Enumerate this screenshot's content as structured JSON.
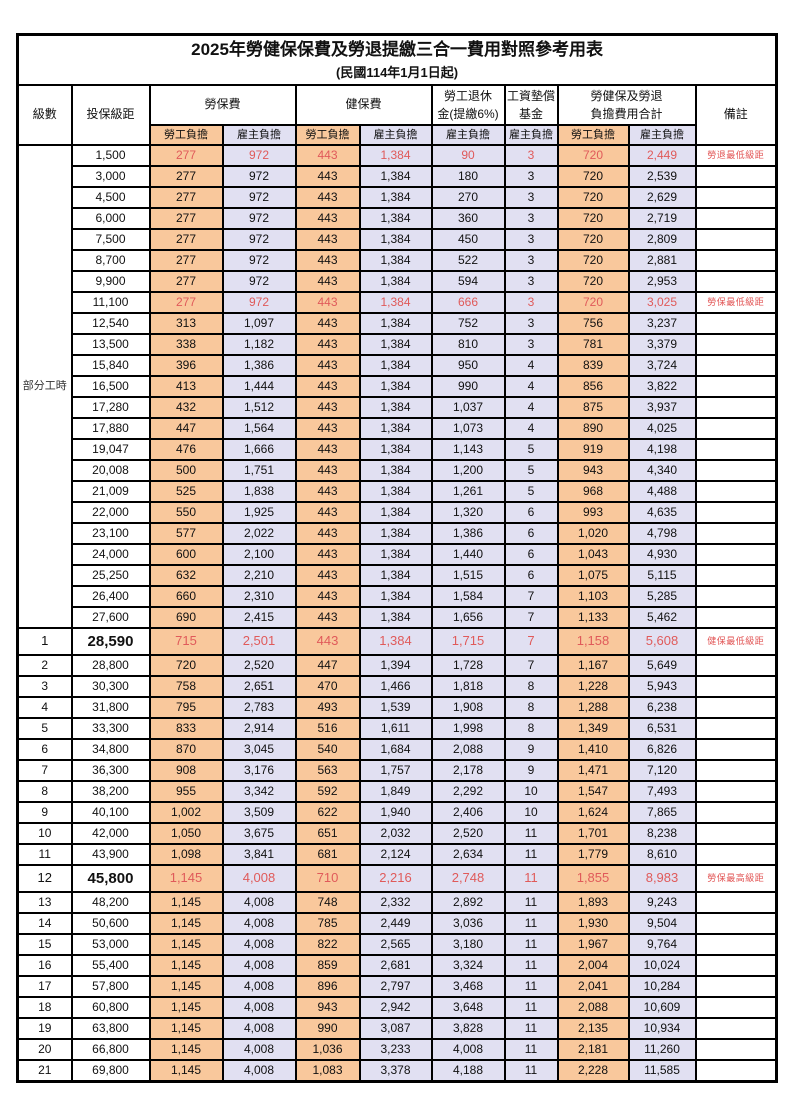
{
  "title": "2025年勞健保保費及勞退提繳三合一費用對照參考用表",
  "subtitle": "(民國114年1月1日起)",
  "colors": {
    "employee_share_bg": "#F9C89C",
    "employer_share_bg": "#E1E0F2",
    "highlight_text": "#E05A5A",
    "note_text": "#E25555",
    "border": "#000000"
  },
  "table": {
    "headers": {
      "level": "級數",
      "bracket": "投保級距",
      "labor_insurance": "勞保費",
      "health_insurance": "健保費",
      "pension_line1": "勞工退休",
      "pension_line2": "金(提繳6%)",
      "wage_fund_line1": "工資墊償",
      "wage_fund_line2": "基金",
      "total_line1": "勞健保及勞退",
      "total_line2": "負擔費用合計",
      "remark": "備註",
      "employee_share": "勞工負擔",
      "employer_share": "雇主負擔"
    },
    "part_time_label": "部分工時",
    "rows": [
      {
        "level": "",
        "bracket": "1,500",
        "v": [
          "277",
          "972",
          "443",
          "1,384",
          "90",
          "3",
          "720",
          "2,449"
        ],
        "note": "勞退最低級距",
        "red": true
      },
      {
        "level": "",
        "bracket": "3,000",
        "v": [
          "277",
          "972",
          "443",
          "1,384",
          "180",
          "3",
          "720",
          "2,539"
        ],
        "note": ""
      },
      {
        "level": "",
        "bracket": "4,500",
        "v": [
          "277",
          "972",
          "443",
          "1,384",
          "270",
          "3",
          "720",
          "2,629"
        ],
        "note": ""
      },
      {
        "level": "",
        "bracket": "6,000",
        "v": [
          "277",
          "972",
          "443",
          "1,384",
          "360",
          "3",
          "720",
          "2,719"
        ],
        "note": ""
      },
      {
        "level": "",
        "bracket": "7,500",
        "v": [
          "277",
          "972",
          "443",
          "1,384",
          "450",
          "3",
          "720",
          "2,809"
        ],
        "note": ""
      },
      {
        "level": "",
        "bracket": "8,700",
        "v": [
          "277",
          "972",
          "443",
          "1,384",
          "522",
          "3",
          "720",
          "2,881"
        ],
        "note": ""
      },
      {
        "level": "",
        "bracket": "9,900",
        "v": [
          "277",
          "972",
          "443",
          "1,384",
          "594",
          "3",
          "720",
          "2,953"
        ],
        "note": ""
      },
      {
        "level": "",
        "bracket": "11,100",
        "v": [
          "277",
          "972",
          "443",
          "1,384",
          "666",
          "3",
          "720",
          "3,025"
        ],
        "note": "勞保最低級距",
        "red": true
      },
      {
        "level": "",
        "bracket": "12,540",
        "v": [
          "313",
          "1,097",
          "443",
          "1,384",
          "752",
          "3",
          "756",
          "3,237"
        ],
        "note": ""
      },
      {
        "level": "",
        "bracket": "13,500",
        "v": [
          "338",
          "1,182",
          "443",
          "1,384",
          "810",
          "3",
          "781",
          "3,379"
        ],
        "note": ""
      },
      {
        "level": "",
        "bracket": "15,840",
        "v": [
          "396",
          "1,386",
          "443",
          "1,384",
          "950",
          "4",
          "839",
          "3,724"
        ],
        "note": ""
      },
      {
        "level": "",
        "bracket": "16,500",
        "v": [
          "413",
          "1,444",
          "443",
          "1,384",
          "990",
          "4",
          "856",
          "3,822"
        ],
        "note": ""
      },
      {
        "level": "",
        "bracket": "17,280",
        "v": [
          "432",
          "1,512",
          "443",
          "1,384",
          "1,037",
          "4",
          "875",
          "3,937"
        ],
        "note": ""
      },
      {
        "level": "",
        "bracket": "17,880",
        "v": [
          "447",
          "1,564",
          "443",
          "1,384",
          "1,073",
          "4",
          "890",
          "4,025"
        ],
        "note": ""
      },
      {
        "level": "",
        "bracket": "19,047",
        "v": [
          "476",
          "1,666",
          "443",
          "1,384",
          "1,143",
          "5",
          "919",
          "4,198"
        ],
        "note": ""
      },
      {
        "level": "",
        "bracket": "20,008",
        "v": [
          "500",
          "1,751",
          "443",
          "1,384",
          "1,200",
          "5",
          "943",
          "4,340"
        ],
        "note": ""
      },
      {
        "level": "",
        "bracket": "21,009",
        "v": [
          "525",
          "1,838",
          "443",
          "1,384",
          "1,261",
          "5",
          "968",
          "4,488"
        ],
        "note": ""
      },
      {
        "level": "",
        "bracket": "22,000",
        "v": [
          "550",
          "1,925",
          "443",
          "1,384",
          "1,320",
          "6",
          "993",
          "4,635"
        ],
        "note": ""
      },
      {
        "level": "",
        "bracket": "23,100",
        "v": [
          "577",
          "2,022",
          "443",
          "1,384",
          "1,386",
          "6",
          "1,020",
          "4,798"
        ],
        "note": ""
      },
      {
        "level": "",
        "bracket": "24,000",
        "v": [
          "600",
          "2,100",
          "443",
          "1,384",
          "1,440",
          "6",
          "1,043",
          "4,930"
        ],
        "note": ""
      },
      {
        "level": "",
        "bracket": "25,250",
        "v": [
          "632",
          "2,210",
          "443",
          "1,384",
          "1,515",
          "6",
          "1,075",
          "5,115"
        ],
        "note": ""
      },
      {
        "level": "",
        "bracket": "26,400",
        "v": [
          "660",
          "2,310",
          "443",
          "1,384",
          "1,584",
          "7",
          "1,103",
          "5,285"
        ],
        "note": ""
      },
      {
        "level": "",
        "bracket": "27,600",
        "v": [
          "690",
          "2,415",
          "443",
          "1,384",
          "1,656",
          "7",
          "1,133",
          "5,462"
        ],
        "note": ""
      },
      {
        "level": "1",
        "bracket": "28,590",
        "v": [
          "715",
          "2,501",
          "443",
          "1,384",
          "1,715",
          "7",
          "1,158",
          "5,608"
        ],
        "note": "健保最低級距",
        "red": true,
        "big": true
      },
      {
        "level": "2",
        "bracket": "28,800",
        "v": [
          "720",
          "2,520",
          "447",
          "1,394",
          "1,728",
          "7",
          "1,167",
          "5,649"
        ],
        "note": ""
      },
      {
        "level": "3",
        "bracket": "30,300",
        "v": [
          "758",
          "2,651",
          "470",
          "1,466",
          "1,818",
          "8",
          "1,228",
          "5,943"
        ],
        "note": ""
      },
      {
        "level": "4",
        "bracket": "31,800",
        "v": [
          "795",
          "2,783",
          "493",
          "1,539",
          "1,908",
          "8",
          "1,288",
          "6,238"
        ],
        "note": ""
      },
      {
        "level": "5",
        "bracket": "33,300",
        "v": [
          "833",
          "2,914",
          "516",
          "1,611",
          "1,998",
          "8",
          "1,349",
          "6,531"
        ],
        "note": ""
      },
      {
        "level": "6",
        "bracket": "34,800",
        "v": [
          "870",
          "3,045",
          "540",
          "1,684",
          "2,088",
          "9",
          "1,410",
          "6,826"
        ],
        "note": ""
      },
      {
        "level": "7",
        "bracket": "36,300",
        "v": [
          "908",
          "3,176",
          "563",
          "1,757",
          "2,178",
          "9",
          "1,471",
          "7,120"
        ],
        "note": ""
      },
      {
        "level": "8",
        "bracket": "38,200",
        "v": [
          "955",
          "3,342",
          "592",
          "1,849",
          "2,292",
          "10",
          "1,547",
          "7,493"
        ],
        "note": ""
      },
      {
        "level": "9",
        "bracket": "40,100",
        "v": [
          "1,002",
          "3,509",
          "622",
          "1,940",
          "2,406",
          "10",
          "1,624",
          "7,865"
        ],
        "note": ""
      },
      {
        "level": "10",
        "bracket": "42,000",
        "v": [
          "1,050",
          "3,675",
          "651",
          "2,032",
          "2,520",
          "11",
          "1,701",
          "8,238"
        ],
        "note": ""
      },
      {
        "level": "11",
        "bracket": "43,900",
        "v": [
          "1,098",
          "3,841",
          "681",
          "2,124",
          "2,634",
          "11",
          "1,779",
          "8,610"
        ],
        "note": ""
      },
      {
        "level": "12",
        "bracket": "45,800",
        "v": [
          "1,145",
          "4,008",
          "710",
          "2,216",
          "2,748",
          "11",
          "1,855",
          "8,983"
        ],
        "note": "勞保最高級距",
        "red": true,
        "big": true
      },
      {
        "level": "13",
        "bracket": "48,200",
        "v": [
          "1,145",
          "4,008",
          "748",
          "2,332",
          "2,892",
          "11",
          "1,893",
          "9,243"
        ],
        "note": ""
      },
      {
        "level": "14",
        "bracket": "50,600",
        "v": [
          "1,145",
          "4,008",
          "785",
          "2,449",
          "3,036",
          "11",
          "1,930",
          "9,504"
        ],
        "note": ""
      },
      {
        "level": "15",
        "bracket": "53,000",
        "v": [
          "1,145",
          "4,008",
          "822",
          "2,565",
          "3,180",
          "11",
          "1,967",
          "9,764"
        ],
        "note": ""
      },
      {
        "level": "16",
        "bracket": "55,400",
        "v": [
          "1,145",
          "4,008",
          "859",
          "2,681",
          "3,324",
          "11",
          "2,004",
          "10,024"
        ],
        "note": ""
      },
      {
        "level": "17",
        "bracket": "57,800",
        "v": [
          "1,145",
          "4,008",
          "896",
          "2,797",
          "3,468",
          "11",
          "2,041",
          "10,284"
        ],
        "note": ""
      },
      {
        "level": "18",
        "bracket": "60,800",
        "v": [
          "1,145",
          "4,008",
          "943",
          "2,942",
          "3,648",
          "11",
          "2,088",
          "10,609"
        ],
        "note": ""
      },
      {
        "level": "19",
        "bracket": "63,800",
        "v": [
          "1,145",
          "4,008",
          "990",
          "3,087",
          "3,828",
          "11",
          "2,135",
          "10,934"
        ],
        "note": ""
      },
      {
        "level": "20",
        "bracket": "66,800",
        "v": [
          "1,145",
          "4,008",
          "1,036",
          "3,233",
          "4,008",
          "11",
          "2,181",
          "11,260"
        ],
        "note": ""
      },
      {
        "level": "21",
        "bracket": "69,800",
        "v": [
          "1,145",
          "4,008",
          "1,083",
          "3,378",
          "4,188",
          "11",
          "2,228",
          "11,585"
        ],
        "note": ""
      }
    ]
  }
}
